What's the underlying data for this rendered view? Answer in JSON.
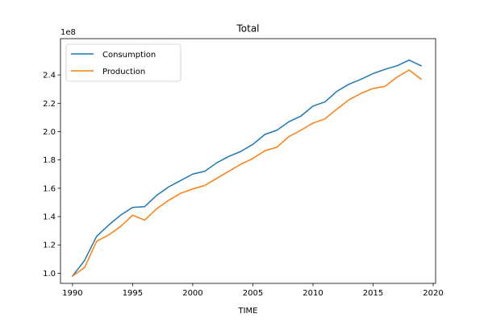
{
  "chart_data": {
    "type": "line",
    "title": "Total",
    "xlabel": "TIME",
    "ylabel": "",
    "y_offset_label": "1e8",
    "xlim": [
      1989.0,
      2020.2
    ],
    "ylim": [
      0.9285,
      2.6565
    ],
    "x_ticks": [
      1990,
      1995,
      2000,
      2005,
      2010,
      2015,
      2020
    ],
    "x_tick_labels": [
      "1990",
      "1995",
      "2000",
      "2005",
      "2010",
      "2015",
      "2020"
    ],
    "y_ticks": [
      1.0,
      1.2,
      1.4,
      1.6,
      1.8,
      2.0,
      2.2,
      2.4
    ],
    "y_tick_labels": [
      "1.0",
      "1.2",
      "1.4",
      "1.6",
      "1.8",
      "2.0",
      "2.2",
      "2.4"
    ],
    "grid": false,
    "legend_position": "upper-left",
    "x": [
      1990,
      1991,
      1992,
      1993,
      1994,
      1995,
      1996,
      1997,
      1998,
      1999,
      2000,
      2001,
      2002,
      2003,
      2004,
      2005,
      2006,
      2007,
      2008,
      2009,
      2010,
      2011,
      2012,
      2013,
      2014,
      2015,
      2016,
      2017,
      2018,
      2019
    ],
    "series": [
      {
        "name": "Consumption",
        "color": "#1f77b4",
        "values": [
          0.98,
          1.09,
          1.26,
          1.34,
          1.41,
          1.465,
          1.47,
          1.55,
          1.61,
          1.655,
          1.7,
          1.72,
          1.78,
          1.825,
          1.86,
          1.91,
          1.98,
          2.01,
          2.07,
          2.11,
          2.18,
          2.21,
          2.285,
          2.335,
          2.37,
          2.41,
          2.44,
          2.465,
          2.505,
          2.465
        ]
      },
      {
        "name": "Production",
        "color": "#ff7f0e",
        "values": [
          0.98,
          1.04,
          1.225,
          1.27,
          1.33,
          1.41,
          1.375,
          1.455,
          1.515,
          1.565,
          1.595,
          1.62,
          1.67,
          1.72,
          1.77,
          1.81,
          1.865,
          1.89,
          1.965,
          2.01,
          2.06,
          2.09,
          2.16,
          2.225,
          2.27,
          2.305,
          2.32,
          2.385,
          2.435,
          2.37
        ]
      }
    ]
  }
}
